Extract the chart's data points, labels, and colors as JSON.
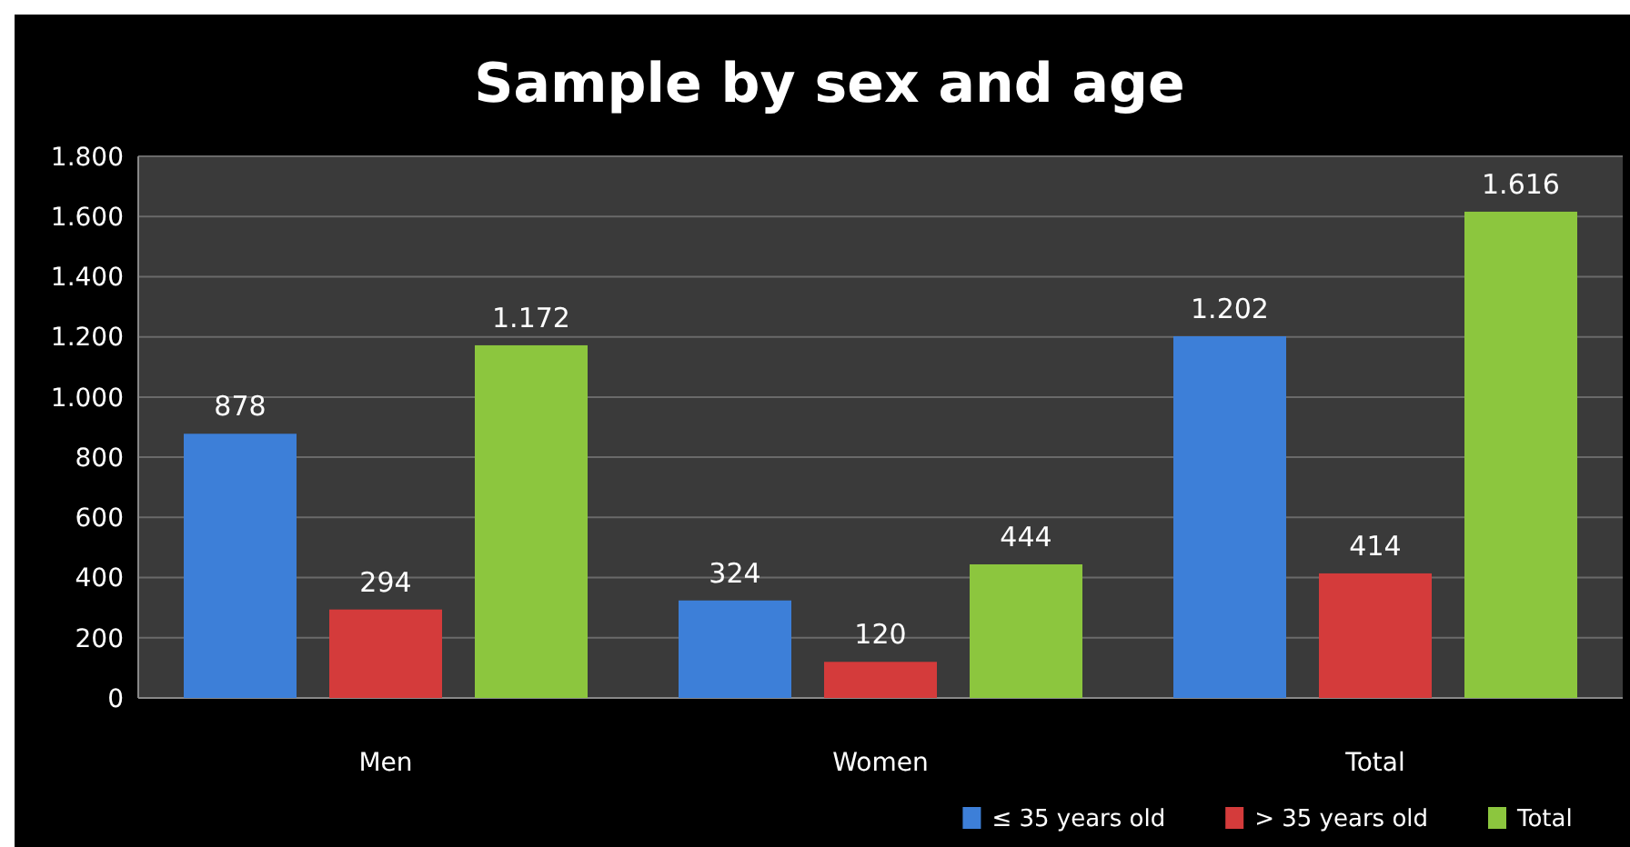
{
  "chart_data": {
    "type": "bar",
    "title": "Sample by sex and age",
    "categories": [
      "Men",
      "Women",
      "Total"
    ],
    "series": [
      {
        "name": "≤ 35 years old",
        "color": "#3d7fd8",
        "values": [
          878,
          324,
          1202
        ],
        "value_labels": [
          "878",
          "324",
          "1.202"
        ]
      },
      {
        "name": "> 35 years old",
        "color": "#d43b3b",
        "values": [
          294,
          120,
          414
        ],
        "value_labels": [
          "294",
          "120",
          "414"
        ]
      },
      {
        "name": "Total",
        "color": "#8cc63e",
        "values": [
          1172,
          444,
          1616
        ],
        "value_labels": [
          "1.172",
          "444",
          "1.616"
        ]
      }
    ],
    "ylim": [
      0,
      1800
    ],
    "yticks": [
      0,
      {
        "value": 200,
        "label": "200"
      },
      {
        "value": 400,
        "label": "400"
      },
      {
        "value": 600,
        "label": "600"
      },
      {
        "value": 800,
        "label": "800"
      },
      {
        "value": 1000,
        "label": "1.000"
      },
      {
        "value": 1200,
        "label": "1.200"
      },
      {
        "value": 1400,
        "label": "1.400"
      },
      {
        "value": 1600,
        "label": "1.600"
      },
      {
        "value": 1800,
        "label": "1.800"
      }
    ],
    "grid": "y",
    "legend": "bottom right"
  }
}
